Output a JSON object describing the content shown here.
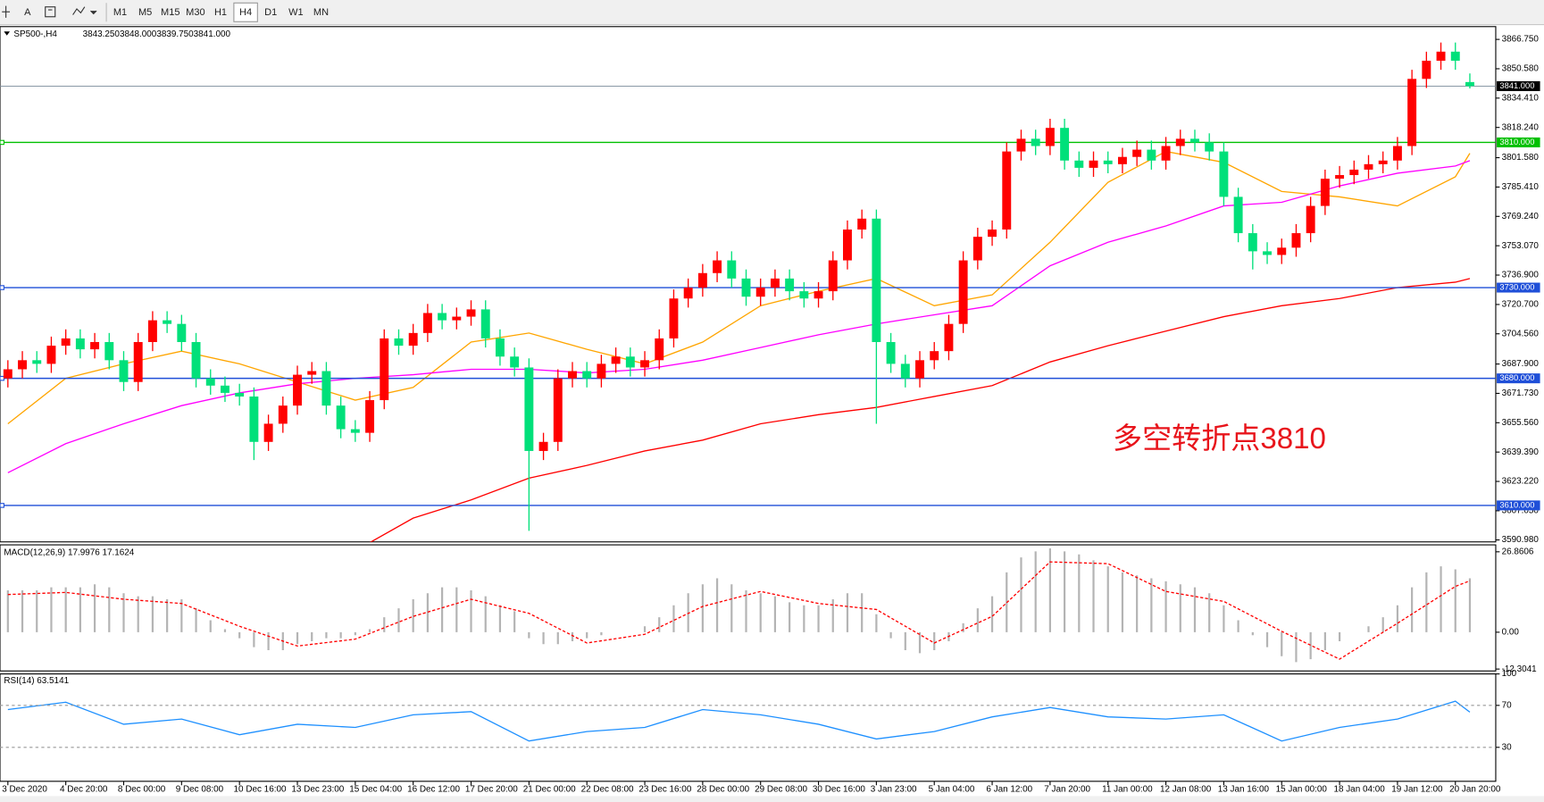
{
  "toolbar": {
    "text_button": "A",
    "timeframes": [
      "M1",
      "M5",
      "M15",
      "M30",
      "H1",
      "H4",
      "D1",
      "W1",
      "MN"
    ],
    "active": "H4"
  },
  "chart_data": [
    {
      "type": "candlestick",
      "title": "SP500-,H4",
      "ohlc_labels": [
        "3843.250",
        "3848.000",
        "3839.750",
        "3841.000"
      ],
      "categories": [
        "3 Dec 2020",
        null,
        null,
        null,
        "4 Dec 20:00",
        null,
        null,
        null,
        "8 Dec 00:00",
        null,
        null,
        null,
        "9 Dec 08:00",
        null,
        null,
        null,
        "10 Dec 16:00",
        null,
        null,
        null,
        "13 Dec 23:00",
        null,
        null,
        null,
        "15 Dec 04:00",
        null,
        null,
        null,
        "16 Dec 12:00",
        null,
        null,
        null,
        "17 Dec 20:00",
        null,
        null,
        null,
        "21 Dec 00:00",
        null,
        null,
        null,
        "22 Dec 08:00",
        null,
        null,
        null,
        "23 Dec 16:00",
        null,
        null,
        null,
        "28 Dec 00:00",
        null,
        null,
        null,
        "29 Dec 08:00",
        null,
        null,
        null,
        "30 Dec 16:00",
        null,
        null,
        null,
        "3 Jan 23:00",
        null,
        null,
        null,
        "5 Jan 04:00",
        null,
        null,
        null,
        "6 Jan 12:00",
        null,
        null,
        null,
        "7 Jan 20:00",
        null,
        null,
        null,
        "11 Jan 00:00",
        null,
        null,
        null,
        "12 Jan 08:00",
        null,
        null,
        null,
        "13 Jan 16:00",
        null,
        null,
        null,
        "15 Jan 00:00",
        null,
        null,
        null,
        "18 Jan 04:00",
        null,
        null,
        null,
        "19 Jan 12:00",
        null,
        null,
        null,
        "20 Jan 20:00",
        null
      ],
      "open": [
        3680,
        3685,
        3690,
        3688,
        3698,
        3702,
        3696,
        3700,
        3690,
        3678,
        3700,
        3712,
        3710,
        3700,
        3680,
        3676,
        3672,
        3670,
        3645,
        3655,
        3665,
        3682,
        3684,
        3665,
        3652,
        3650,
        3668,
        3702,
        3698,
        3705,
        3716,
        3712,
        3714,
        3718,
        3702,
        3692,
        3686,
        3640,
        3645,
        3680,
        3684,
        3680,
        3688,
        3692,
        3686,
        3690,
        3702,
        3724,
        3730,
        3738,
        3745,
        3735,
        3725,
        3730,
        3735,
        3728,
        3724,
        3728,
        3745,
        3762,
        3768,
        3700,
        3688,
        3680,
        3690,
        3695,
        3710,
        3745,
        3758,
        3762,
        3805,
        3812,
        3808,
        3818,
        3800,
        3796,
        3800,
        3798,
        3802,
        3806,
        3800,
        3808,
        3812,
        3810,
        3805,
        3780,
        3760,
        3750,
        3748,
        3752,
        3760,
        3775,
        3790,
        3792,
        3795,
        3798,
        3800,
        3808,
        3845,
        3855,
        3860,
        3843.25
      ],
      "high": [
        3690,
        3695,
        3695,
        3703,
        3707,
        3707,
        3705,
        3705,
        3695,
        3705,
        3717,
        3717,
        3715,
        3705,
        3685,
        3681,
        3677,
        3675,
        3660,
        3670,
        3687,
        3689,
        3689,
        3670,
        3657,
        3673,
        3707,
        3707,
        3710,
        3721,
        3721,
        3719,
        3723,
        3723,
        3707,
        3697,
        3691,
        3650,
        3685,
        3689,
        3689,
        3693,
        3697,
        3697,
        3695,
        3707,
        3729,
        3735,
        3743,
        3750,
        3750,
        3740,
        3735,
        3740,
        3740,
        3733,
        3733,
        3750,
        3767,
        3773,
        3773,
        3705,
        3693,
        3695,
        3700,
        3715,
        3750,
        3763,
        3767,
        3810,
        3817,
        3817,
        3823,
        3823,
        3805,
        3805,
        3805,
        3807,
        3811,
        3811,
        3813,
        3817,
        3817,
        3815,
        3810,
        3785,
        3765,
        3755,
        3757,
        3765,
        3780,
        3795,
        3797,
        3800,
        3803,
        3805,
        3813,
        3850,
        3860,
        3865,
        3865,
        3848
      ],
      "low": [
        3675,
        3680,
        3683,
        3683,
        3693,
        3691,
        3691,
        3685,
        3673,
        3673,
        3695,
        3705,
        3695,
        3675,
        3671,
        3667,
        3665,
        3635,
        3640,
        3650,
        3660,
        3677,
        3660,
        3647,
        3645,
        3645,
        3663,
        3693,
        3693,
        3700,
        3707,
        3707,
        3709,
        3697,
        3687,
        3681,
        3596,
        3635,
        3640,
        3675,
        3675,
        3675,
        3683,
        3681,
        3681,
        3685,
        3697,
        3719,
        3725,
        3733,
        3730,
        3720,
        3720,
        3725,
        3723,
        3719,
        3719,
        3723,
        3740,
        3757,
        3655,
        3683,
        3675,
        3675,
        3685,
        3690,
        3705,
        3740,
        3753,
        3757,
        3800,
        3803,
        3803,
        3795,
        3791,
        3791,
        3793,
        3793,
        3797,
        3795,
        3795,
        3803,
        3805,
        3800,
        3775,
        3755,
        3740,
        3743,
        3743,
        3747,
        3755,
        3770,
        3785,
        3787,
        3790,
        3793,
        3795,
        3803,
        3840,
        3850,
        3850,
        3839.75
      ],
      "close": [
        3685,
        3690,
        3688,
        3698,
        3702,
        3696,
        3700,
        3690,
        3678,
        3700,
        3712,
        3710,
        3700,
        3680,
        3676,
        3672,
        3670,
        3645,
        3655,
        3665,
        3682,
        3684,
        3665,
        3652,
        3650,
        3668,
        3702,
        3698,
        3705,
        3716,
        3712,
        3714,
        3718,
        3702,
        3692,
        3686,
        3640,
        3645,
        3680,
        3684,
        3680,
        3688,
        3692,
        3686,
        3690,
        3702,
        3724,
        3730,
        3738,
        3745,
        3735,
        3725,
        3730,
        3735,
        3728,
        3724,
        3728,
        3745,
        3762,
        3768,
        3700,
        3688,
        3680,
        3690,
        3695,
        3710,
        3745,
        3758,
        3762,
        3805,
        3812,
        3808,
        3818,
        3800,
        3796,
        3800,
        3798,
        3802,
        3806,
        3800,
        3808,
        3812,
        3810,
        3805,
        3780,
        3760,
        3750,
        3748,
        3752,
        3760,
        3775,
        3790,
        3792,
        3795,
        3798,
        3800,
        3808,
        3845,
        3855,
        3860,
        3855,
        3841
      ],
      "up_color": "#ff0000",
      "down_color": "#00e07a",
      "series": [
        {
          "color": "#ffa500",
          "x": [
            0,
            4,
            8,
            12,
            16,
            20,
            24,
            28,
            32,
            36,
            40,
            44,
            48,
            52,
            56,
            60,
            64,
            68,
            72,
            76,
            80,
            84,
            88,
            92,
            96,
            100,
            101
          ],
          "values": [
            3655,
            3680,
            3688,
            3695,
            3688,
            3678,
            3668,
            3675,
            3700,
            3705,
            3696,
            3688,
            3700,
            3720,
            3728,
            3735,
            3720,
            3726,
            3755,
            3788,
            3805,
            3799,
            3783,
            3780,
            3775,
            3791,
            3804
          ]
        },
        {
          "color": "#ff00ff",
          "x": [
            0,
            4,
            8,
            12,
            16,
            20,
            24,
            28,
            32,
            36,
            40,
            44,
            48,
            52,
            56,
            60,
            64,
            68,
            72,
            76,
            80,
            84,
            88,
            92,
            96,
            100,
            101
          ],
          "values": [
            3628,
            3644,
            3655,
            3665,
            3672,
            3677,
            3680,
            3682,
            3685,
            3685,
            3683,
            3685,
            3690,
            3697,
            3704,
            3710,
            3715,
            3720,
            3742,
            3755,
            3764,
            3775,
            3777,
            3786,
            3793,
            3797,
            3800
          ]
        },
        {
          "color": "#ff0000",
          "x": [
            24,
            28,
            32,
            36,
            40,
            44,
            48,
            52,
            56,
            60,
            64,
            68,
            72,
            76,
            80,
            84,
            88,
            92,
            96,
            100,
            101
          ],
          "values": [
            3585,
            3603,
            3613,
            3625,
            3632,
            3640,
            3646,
            3655,
            3660,
            3664,
            3670,
            3676,
            3689,
            3698,
            3706,
            3714,
            3720,
            3724,
            3730,
            3733,
            3735
          ]
        }
      ],
      "levels": [
        {
          "value": 3810,
          "label": "3810.000",
          "color": "#00c000"
        },
        {
          "value": 3730,
          "label": "3730.000",
          "color": "#1f4fd8"
        },
        {
          "value": 3680,
          "label": "3680.000",
          "color": "#1f4fd8"
        },
        {
          "value": 3610,
          "label": "3610.000",
          "color": "#1f4fd8"
        }
      ],
      "current_price": {
        "value": 3841,
        "label": "3841.000"
      },
      "annotation": {
        "text": "多空转折点3810",
        "color": "#e8141b"
      },
      "ylim": [
        3589.9,
        3873.8
      ],
      "yticks": [
        {
          "value": 3866.75,
          "label": "3866.750"
        },
        {
          "value": 3850.58,
          "label": "3850.580"
        },
        {
          "value": 3834.41,
          "label": "3834.410"
        },
        {
          "value": 3818.24,
          "label": "3818.240"
        },
        {
          "value": 3801.58,
          "label": "3801.580"
        },
        {
          "value": 3785.41,
          "label": "3785.410"
        },
        {
          "value": 3769.24,
          "label": "3769.240"
        },
        {
          "value": 3753.07,
          "label": "3753.070"
        },
        {
          "value": 3736.9,
          "label": "3736.900"
        },
        {
          "value": 3720.7,
          "label": "3720.700"
        },
        {
          "value": 3704.56,
          "label": "3704.560"
        },
        {
          "value": 3687.9,
          "label": "3687.900"
        },
        {
          "value": 3671.73,
          "label": "3671.730"
        },
        {
          "value": 3655.56,
          "label": "3655.560"
        },
        {
          "value": 3639.39,
          "label": "3639.390"
        },
        {
          "value": 3623.22,
          "label": "3623.220"
        },
        {
          "value": 3607.05,
          "label": "3607.050"
        },
        {
          "value": 3590.98,
          "label": "3590.980"
        }
      ]
    },
    {
      "type": "macd",
      "title": "MACD(12,26,9) 17.9976 17.1624",
      "histogram": {
        "color": "#b4b4b4",
        "values": [
          14,
          14,
          14,
          15,
          15,
          15,
          16,
          15,
          13,
          12,
          12,
          11,
          11,
          8,
          4,
          1,
          -2,
          -5,
          -6,
          -6,
          -4,
          -3,
          -2,
          -2,
          -1,
          1,
          5,
          8,
          11,
          13,
          15,
          15,
          14,
          12,
          9,
          7,
          -2,
          -4,
          -4,
          -3,
          -2,
          -1,
          0,
          0,
          2,
          5,
          9,
          13,
          16,
          18,
          16,
          14,
          13,
          12,
          10,
          9,
          9,
          11,
          13,
          13,
          6,
          -2,
          -6,
          -7,
          -6,
          -3,
          3,
          8,
          12,
          20,
          25,
          27,
          28,
          27,
          26,
          24,
          22,
          20,
          19,
          18,
          17,
          16,
          15,
          13,
          9,
          4,
          -1,
          -5,
          -8,
          -10,
          -9,
          -6,
          -3,
          0,
          2,
          5,
          9,
          15,
          20,
          22,
          21,
          17.9976
        ]
      },
      "signal": {
        "color": "#ff0000",
        "x": [
          0,
          4,
          8,
          12,
          16,
          20,
          24,
          28,
          32,
          36,
          40,
          44,
          48,
          52,
          56,
          60,
          64,
          68,
          72,
          76,
          80,
          84,
          88,
          92,
          96,
          100,
          101
        ],
        "values": [
          12.6,
          13.3,
          11,
          9.6,
          2,
          -4.6,
          -2.3,
          5.3,
          11,
          6.3,
          -3.6,
          -0.7,
          8.6,
          13.6,
          9.6,
          7.6,
          -3.6,
          5.3,
          23.5,
          22.9,
          13.6,
          10.3,
          0.3,
          -9,
          3,
          15.3,
          17.1624
        ]
      },
      "ylim": [
        -12.94,
        29.18
      ],
      "yticks": [
        26.8606,
        {
          "value": 0,
          "label": "0.00"
        },
        -12.3041
      ]
    },
    {
      "type": "line",
      "title": "RSI(14) 63.5141",
      "series": [
        {
          "color": "#1e90ff",
          "x": [
            0,
            4,
            8,
            12,
            16,
            20,
            24,
            28,
            32,
            36,
            40,
            44,
            48,
            52,
            56,
            60,
            64,
            68,
            72,
            76,
            80,
            84,
            88,
            92,
            96,
            100,
            101
          ],
          "values": [
            66,
            73,
            52,
            57,
            42,
            52,
            49,
            61,
            64,
            36,
            45,
            49,
            66,
            61,
            52,
            38,
            45,
            59,
            68,
            59,
            57,
            61,
            36,
            49,
            57,
            74,
            63.5141
          ]
        }
      ],
      "ylim": [
        -2.4,
        100
      ],
      "yticks": [
        100,
        70,
        30
      ],
      "grid": true
    }
  ]
}
